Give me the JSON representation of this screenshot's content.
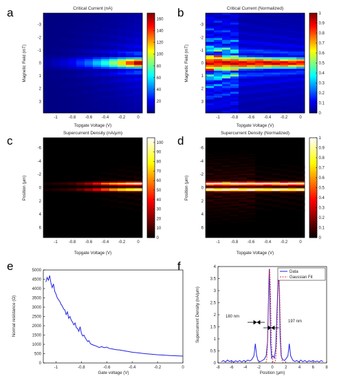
{
  "chart_data": [
    {
      "id": "a",
      "panel_label": "a",
      "type": "heatmap",
      "title": "Critical Current (nA)",
      "xlabel": "Topgate Voltage (V)",
      "ylabel": "Magnetic Field (mT)",
      "xlim": [
        -1.15,
        0.05
      ],
      "ylim": [
        -3.9,
        3.9
      ],
      "xticks": [
        "-1",
        "-0.8",
        "-0.6",
        "-0.4",
        "-0.2",
        "0"
      ],
      "yticks": [
        "-3",
        "-2",
        "-1",
        "0",
        "1",
        "2",
        "3"
      ],
      "colormap": "jet",
      "colorbar_ticks": [
        "20",
        "40",
        "60",
        "80",
        "100",
        "120",
        "140",
        "160"
      ],
      "colorbar_range": [
        0,
        170
      ],
      "columns_x": [
        -1.1,
        -1.0,
        -0.9,
        -0.8,
        -0.7,
        -0.6,
        -0.5,
        -0.4,
        -0.3,
        -0.2,
        -0.1,
        0.0
      ],
      "peak_values": [
        6,
        10,
        14,
        20,
        30,
        40,
        55,
        70,
        90,
        115,
        140,
        165
      ]
    },
    {
      "id": "b",
      "panel_label": "b",
      "type": "heatmap",
      "title": "Critical Current (Normalized)",
      "xlabel": "Topgate Voltage (V)",
      "ylabel": "Magnetic Field (mT)",
      "xlim": [
        -1.15,
        0.05
      ],
      "ylim": [
        -3.9,
        3.9
      ],
      "xticks": [
        "-1",
        "-0.8",
        "-0.6",
        "-0.4",
        "-0.2",
        "0"
      ],
      "yticks": [
        "-3",
        "-2",
        "-1",
        "0",
        "1",
        "2",
        "3"
      ],
      "colormap": "jet",
      "colorbar_ticks": [
        "0",
        "0.1",
        "0.2",
        "0.3",
        "0.4",
        "0.5",
        "0.6",
        "0.7",
        "0.8",
        "0.9",
        "1"
      ],
      "colorbar_range": [
        0,
        1
      ]
    },
    {
      "id": "c",
      "panel_label": "c",
      "type": "heatmap",
      "title": "Supercurrent Density (nA/μm)",
      "xlabel": "Topgate Voltage (V)",
      "ylabel": "Position (μm)",
      "xlim": [
        -1.15,
        0.05
      ],
      "ylim": [
        -7.5,
        7.5
      ],
      "xticks": [
        "-1",
        "-0.8",
        "-0.6",
        "-0.4",
        "-0.2",
        "0"
      ],
      "yticks": [
        "-6",
        "-4",
        "-2",
        "0",
        "2",
        "4",
        "6"
      ],
      "colormap": "hot",
      "colorbar_ticks": [
        "0",
        "10",
        "20",
        "30",
        "40",
        "50",
        "60",
        "70",
        "80",
        "90",
        "100"
      ],
      "colorbar_range": [
        0,
        105
      ],
      "band_positions": [
        -0.6,
        0.3
      ],
      "peak_values": [
        4,
        6,
        8,
        11,
        18,
        28,
        42,
        58,
        72,
        86,
        98,
        104
      ]
    },
    {
      "id": "d",
      "panel_label": "d",
      "type": "heatmap",
      "title": "Supercurrent Density (Normalized)",
      "xlabel": "Topgate Voltage (V)",
      "ylabel": "Position (μm)",
      "xlim": [
        -1.15,
        0.05
      ],
      "ylim": [
        -7.5,
        7.5
      ],
      "xticks": [
        "-1",
        "-0.8",
        "-0.6",
        "-0.4",
        "-0.2",
        "0"
      ],
      "yticks": [
        "-6",
        "-4",
        "-2",
        "0",
        "2",
        "4",
        "6"
      ],
      "colormap": "hot",
      "colorbar_ticks": [
        "0",
        "0.1",
        "0.2",
        "0.3",
        "0.4",
        "0.5",
        "0.6",
        "0.7",
        "0.8",
        "0.9",
        "1"
      ],
      "colorbar_range": [
        0,
        1
      ]
    },
    {
      "id": "e",
      "panel_label": "e",
      "type": "line",
      "title": "",
      "xlabel": "Gate voltage (V)",
      "ylabel": "Normal resistance (Ω)",
      "xlim": [
        -1.1,
        0
      ],
      "ylim": [
        0,
        5000
      ],
      "xticks": [
        "-1",
        "-0.8",
        "-0.6",
        "-0.4",
        "-0.2",
        "0"
      ],
      "yticks": [
        "0",
        "500",
        "1000",
        "1500",
        "2000",
        "2500",
        "3000",
        "3500",
        "4000",
        "4500",
        "5000"
      ],
      "series": [
        {
          "color": "#1f1fe0",
          "x": [
            -1.08,
            -1.07,
            -1.06,
            -1.05,
            -1.04,
            -1.03,
            -1.02,
            -1.01,
            -1.0,
            -0.99,
            -0.98,
            -0.97,
            -0.96,
            -0.95,
            -0.94,
            -0.93,
            -0.92,
            -0.91,
            -0.9,
            -0.89,
            -0.88,
            -0.87,
            -0.86,
            -0.85,
            -0.84,
            -0.83,
            -0.82,
            -0.81,
            -0.8,
            -0.79,
            -0.78,
            -0.77,
            -0.76,
            -0.75,
            -0.74,
            -0.73,
            -0.72,
            -0.7,
            -0.68,
            -0.66,
            -0.64,
            -0.62,
            -0.6,
            -0.58,
            -0.56,
            -0.54,
            -0.52,
            -0.5,
            -0.45,
            -0.4,
            -0.35,
            -0.3,
            -0.25,
            -0.2,
            -0.15,
            -0.1,
            -0.05,
            0.0
          ],
          "y": [
            4350,
            4600,
            4450,
            4700,
            4300,
            4050,
            4250,
            3850,
            3700,
            3500,
            3400,
            3300,
            3150,
            3050,
            2900,
            2850,
            2600,
            2750,
            2400,
            2500,
            2300,
            2200,
            2050,
            2150,
            1900,
            1850,
            1700,
            1950,
            1600,
            1450,
            1500,
            1350,
            1250,
            1150,
            1200,
            1050,
            1000,
            950,
            900,
            830,
            880,
            820,
            850,
            780,
            760,
            730,
            710,
            700,
            640,
            580,
            540,
            500,
            470,
            440,
            420,
            400,
            385,
            370
          ]
        }
      ]
    },
    {
      "id": "f",
      "panel_label": "f",
      "type": "line",
      "title": "",
      "xlabel": "Position (μm)",
      "ylabel": "Supercurrent Density (nA/μm)",
      "xlim": [
        -8,
        8
      ],
      "ylim": [
        0,
        4
      ],
      "xticks": [
        "-8",
        "-6",
        "-4",
        "-2",
        "0",
        "2",
        "4",
        "6",
        "8"
      ],
      "yticks": [
        "0",
        "0.5",
        "1",
        "1.5",
        "2",
        "2.5",
        "3",
        "3.5",
        "4"
      ],
      "legend_position": "top-right",
      "series": [
        {
          "name": "Data",
          "color": "#1f1fe0",
          "x": [
            -7.5,
            -7.2,
            -6.9,
            -6.6,
            -6.3,
            -6.0,
            -5.7,
            -5.4,
            -5.1,
            -4.8,
            -4.5,
            -4.2,
            -3.9,
            -3.6,
            -3.3,
            -3.0,
            -2.7,
            -2.5,
            -2.3,
            -2.1,
            -1.8,
            -1.5,
            -1.2,
            -0.9,
            -0.7,
            -0.55,
            -0.45,
            -0.35,
            -0.25,
            -0.1,
            0.1,
            0.3,
            0.5,
            0.7,
            0.85,
            0.95,
            1.05,
            1.15,
            1.3,
            1.5,
            1.8,
            2.1,
            2.3,
            2.5,
            2.7,
            3.0,
            3.3,
            3.6,
            3.9,
            4.2,
            4.5,
            4.8,
            5.1,
            5.4,
            5.7,
            6.0,
            6.3,
            6.6,
            6.9,
            7.2,
            7.5
          ],
          "y": [
            0.05,
            0.1,
            0.04,
            0.12,
            0.06,
            0.1,
            0.03,
            0.09,
            0.05,
            0.1,
            0.04,
            0.1,
            0.06,
            0.12,
            0.08,
            0.15,
            0.3,
            0.8,
            0.3,
            0.1,
            0.05,
            0.1,
            0.15,
            0.3,
            0.9,
            2.8,
            3.9,
            2.6,
            0.8,
            0.2,
            0.3,
            0.2,
            0.6,
            2.2,
            3.5,
            3.65,
            2.8,
            1.1,
            0.3,
            0.15,
            0.1,
            0.2,
            0.3,
            0.8,
            0.3,
            0.12,
            0.06,
            0.1,
            0.04,
            0.12,
            0.05,
            0.1,
            0.04,
            0.09,
            0.06,
            0.1,
            0.05,
            0.08,
            0.04,
            0.1,
            0.05
          ]
        },
        {
          "name": "Gaussian Fit",
          "color": "#e03030",
          "gaussians": [
            {
              "center": -0.4,
              "amplitude": 3.9,
              "fwhm_um": 0.18
            },
            {
              "center": 0.95,
              "amplitude": 3.65,
              "fwhm_um": 0.197
            }
          ]
        }
      ],
      "annotations": [
        "180 nm",
        "197 nm"
      ]
    }
  ]
}
